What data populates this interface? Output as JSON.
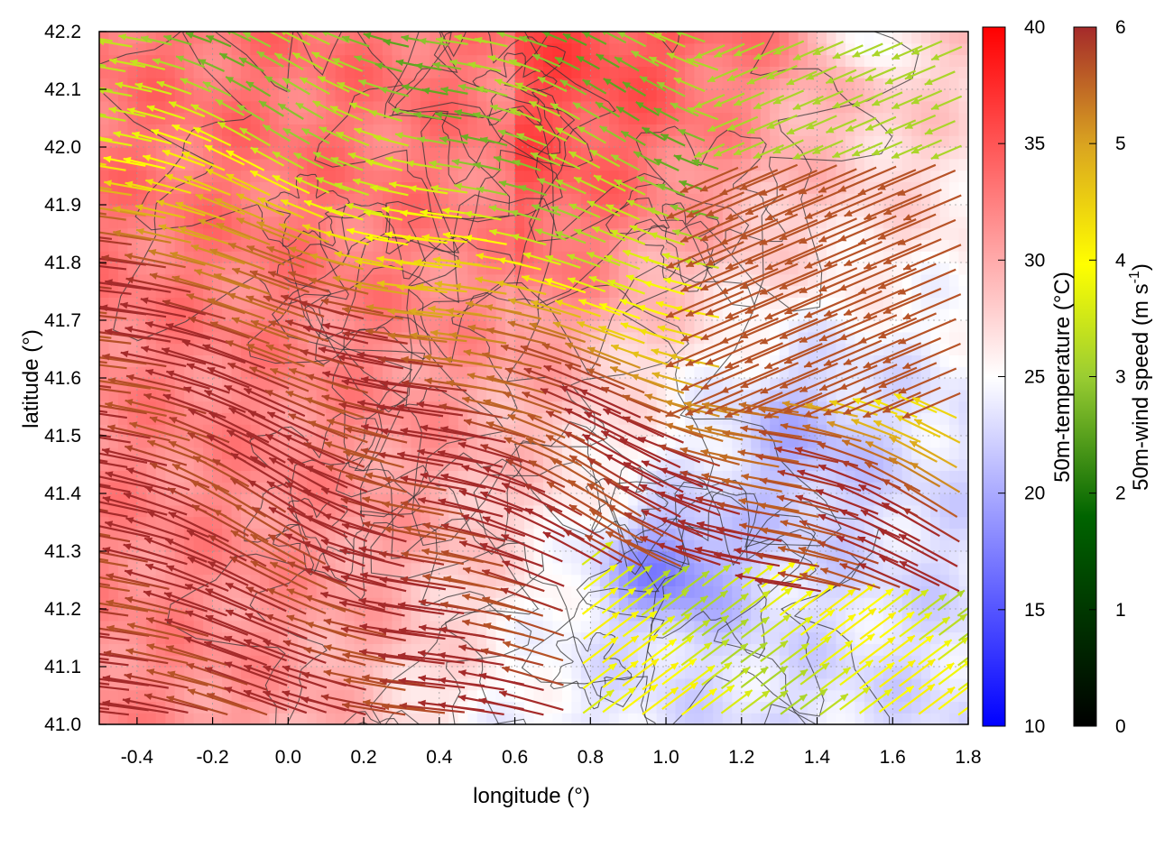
{
  "chart_data": {
    "type": "heatmap",
    "overlay": "vector-field with contour lines",
    "xlabel": "longitude (°)",
    "ylabel": "latitude (°)",
    "xlim": [
      -0.5,
      1.8
    ],
    "ylim": [
      41.0,
      42.2
    ],
    "x_ticks": [
      "-0.4",
      "-0.2",
      "0.0",
      "0.2",
      "0.4",
      "0.6",
      "0.8",
      "1.0",
      "1.2",
      "1.4",
      "1.6",
      "1.8"
    ],
    "y_ticks": [
      "41.0",
      "41.1",
      "41.2",
      "41.3",
      "41.4",
      "41.5",
      "41.6",
      "41.7",
      "41.8",
      "41.9",
      "42.0",
      "42.1",
      "42.2"
    ],
    "grid": true,
    "temperature_colorbar": {
      "label": "50m-temperature (°C)",
      "range": [
        10,
        40
      ],
      "ticks": [
        "10",
        "15",
        "20",
        "25",
        "30",
        "35",
        "40"
      ],
      "colors": [
        "#0000ff",
        "#ffffff",
        "#ff0000"
      ]
    },
    "wind_colorbar": {
      "label_main": "50m-wind speed (m s",
      "label_exp": "-1",
      "label_close": ")",
      "range": [
        0,
        6
      ],
      "ticks": [
        "0",
        "1",
        "2",
        "3",
        "4",
        "5",
        "6"
      ],
      "colors": [
        "#000000",
        "#006400",
        "#9acd32",
        "#ffff00",
        "#daa520",
        "#a52a2a"
      ]
    },
    "temperature_regions": [
      {
        "area": "north-west and west (land)",
        "approx_temp": 32
      },
      {
        "area": "north-east inland",
        "approx_temp": 26
      },
      {
        "area": "east / coast (sea)",
        "approx_temp": 23
      },
      {
        "area": "south-east near (1.0, 41.27)",
        "approx_temp": 18
      }
    ],
    "wind_regimes": [
      {
        "area": "west & centre-south",
        "direction": "from east/south-east toward north-west",
        "approx_speed": 6
      },
      {
        "area": "north-west",
        "direction": "westward, weak",
        "approx_speed": 2.5
      },
      {
        "area": "south-east coast",
        "direction": "toward north-east",
        "approx_speed": 3.8
      },
      {
        "area": "north-east",
        "direction": "from north-east",
        "approx_speed": 5.5
      }
    ]
  }
}
